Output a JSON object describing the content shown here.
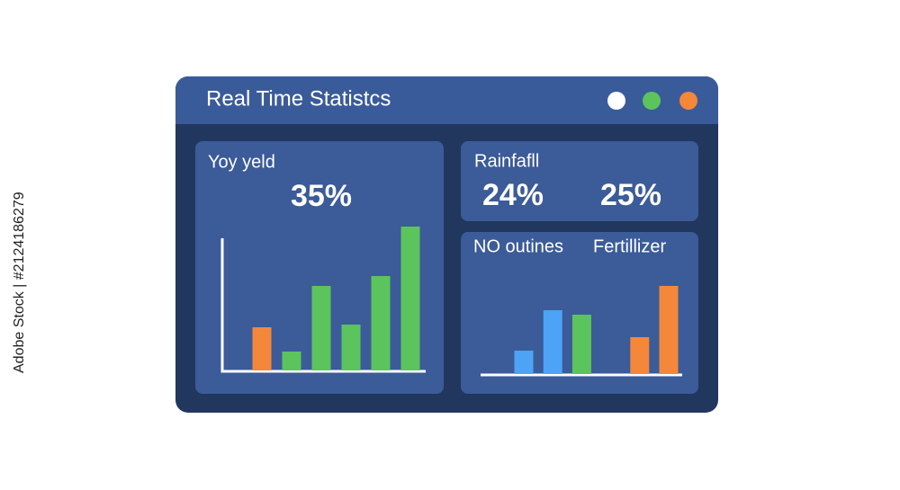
{
  "window": {
    "title": "Real Time Statistcs"
  },
  "watermark": "Adobe Stock | #2124186279",
  "yield_panel": {
    "label": "Yoy yeld",
    "value_label": "35%",
    "chart": {
      "type": "bar",
      "values": [
        48,
        21,
        94,
        51,
        105,
        160
      ],
      "colors": [
        "#f4873a",
        "#5cc45c",
        "#5cc45c",
        "#5cc45c",
        "#5cc45c",
        "#5cc45c"
      ]
    }
  },
  "rainfall_panel": {
    "label": "Rainfafll",
    "values": [
      "24%",
      "25%"
    ]
  },
  "bottom_panel": {
    "labels": [
      "NO outines",
      "Fertillizer"
    ],
    "chart": {
      "type": "bar",
      "values": [
        26,
        71,
        66,
        null,
        41,
        98
      ],
      "colors": [
        "#4da3f5",
        "#4da3f5",
        "#5cc45c",
        null,
        "#f4873a",
        "#f4873a"
      ]
    }
  }
}
